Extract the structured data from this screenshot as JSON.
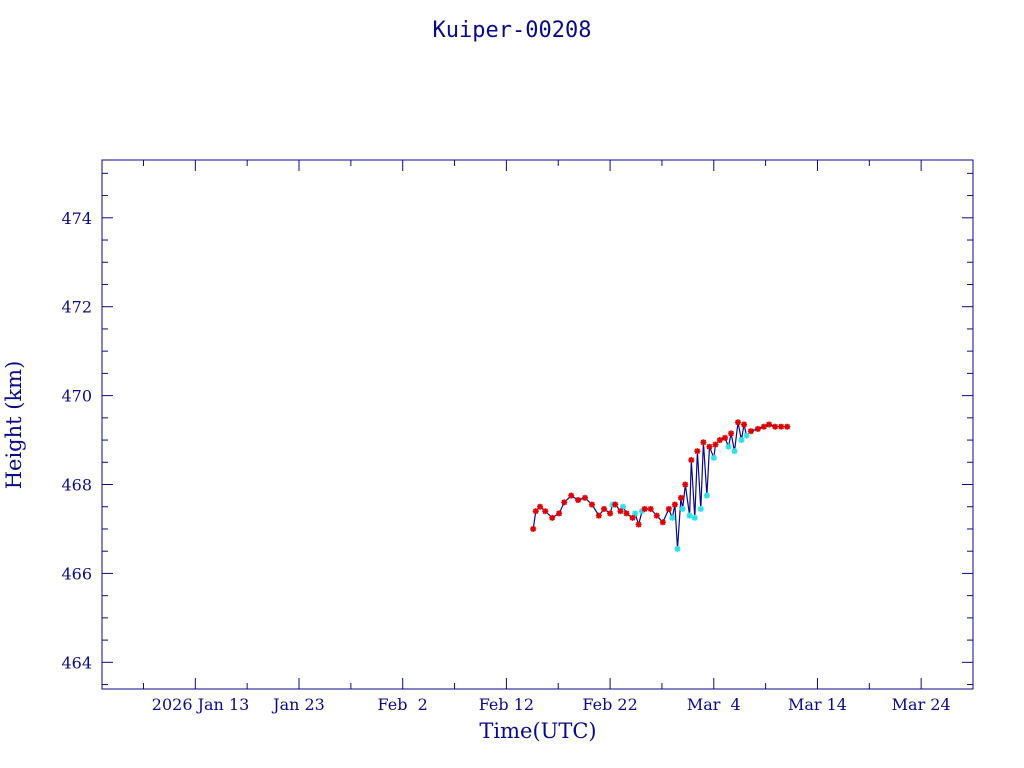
{
  "chart_data": {
    "type": "line",
    "title": "Kuiper-00208",
    "xlabel": "Time(UTC)",
    "ylabel": "Height (km)",
    "x_tick_labels": [
      "2026 Jan 13",
      "Jan 23",
      "Feb  2",
      "Feb 12",
      "Feb 22",
      "Mar  4",
      "Mar 14",
      "Mar 24"
    ],
    "x_tick_dates": [
      "2026-01-13",
      "2026-01-23",
      "2026-02-02",
      "2026-02-12",
      "2026-02-22",
      "2026-03-04",
      "2026-03-14",
      "2026-03-24"
    ],
    "xlim": [
      "2026-01-04",
      "2026-03-29"
    ],
    "y_ticks": [
      464,
      466,
      468,
      470,
      472,
      474
    ],
    "y_tick_labels": [
      "464",
      "466",
      "468",
      "470",
      "472",
      "474"
    ],
    "ylim": [
      463.4,
      475.3
    ],
    "grid": false,
    "colors": {
      "axis": "#0a0a8c",
      "line": "#0a0a8c",
      "marker_primary": "#e00000",
      "marker_secondary": "#30e0e8"
    },
    "series": [
      {
        "marker": "red-asterisk",
        "x": [
          "2026-02-14T14:00",
          "2026-02-14T20:00",
          "2026-02-15T06:00",
          "2026-02-15T18:00",
          "2026-02-16T10:00",
          "2026-02-17T02:00",
          "2026-02-17T14:00",
          "2026-02-18T06:00",
          "2026-02-18T22:00",
          "2026-02-19T14:00",
          "2026-02-20T06:00",
          "2026-02-20T22:00",
          "2026-02-21T10:00",
          "2026-02-22T00:00",
          "2026-02-22T12:00",
          "2026-02-23T00:00",
          "2026-02-23T14:00",
          "2026-02-24T04:00",
          "2026-02-24T18:00",
          "2026-02-25T08:00",
          "2026-02-25T22:00",
          "2026-02-26T12:00",
          "2026-02-27T02:00",
          "2026-02-27T16:00",
          "2026-02-28T06:00",
          "2026-02-28T20:00",
          "2026-03-01T06:00",
          "2026-03-01T20:00",
          "2026-03-02T10:00",
          "2026-03-03T00:00",
          "2026-03-03T14:00",
          "2026-03-04T04:00",
          "2026-03-04T14:00",
          "2026-03-05T02:00",
          "2026-03-05T16:00",
          "2026-03-06T08:00",
          "2026-03-06T22:00",
          "2026-03-07T14:00",
          "2026-03-08T06:00",
          "2026-03-08T20:00",
          "2026-03-09T08:00",
          "2026-03-09T22:00",
          "2026-03-10T12:00",
          "2026-03-11T02:00"
        ],
        "y": [
          467.0,
          467.4,
          467.5,
          467.4,
          467.25,
          467.35,
          467.6,
          467.75,
          467.65,
          467.7,
          467.55,
          467.3,
          467.45,
          467.35,
          467.55,
          467.4,
          467.35,
          467.25,
          467.1,
          467.45,
          467.45,
          467.3,
          467.15,
          467.45,
          467.55,
          467.7,
          468.0,
          468.55,
          468.75,
          468.95,
          468.85,
          468.9,
          469.0,
          469.05,
          469.15,
          469.4,
          469.35,
          469.2,
          469.25,
          469.3,
          469.35,
          469.3,
          469.3,
          469.3
        ]
      },
      {
        "marker": "cyan-asterisk",
        "x": [
          "2026-02-22T06:00",
          "2026-02-23T06:00",
          "2026-02-24T10:00",
          "2026-02-25T02:00",
          "2026-02-28T00:00",
          "2026-02-28T12:00",
          "2026-03-01T00:00",
          "2026-03-01T16:00",
          "2026-03-02T04:00",
          "2026-03-02T18:00",
          "2026-03-03T08:00",
          "2026-03-04T00:00",
          "2026-03-05T10:00",
          "2026-03-06T00:00",
          "2026-03-06T16:00",
          "2026-03-07T04:00"
        ],
        "y": [
          467.55,
          467.5,
          467.35,
          467.4,
          467.25,
          466.55,
          467.45,
          467.3,
          467.25,
          467.45,
          467.75,
          468.6,
          468.85,
          468.75,
          469.0,
          469.1
        ]
      }
    ]
  }
}
